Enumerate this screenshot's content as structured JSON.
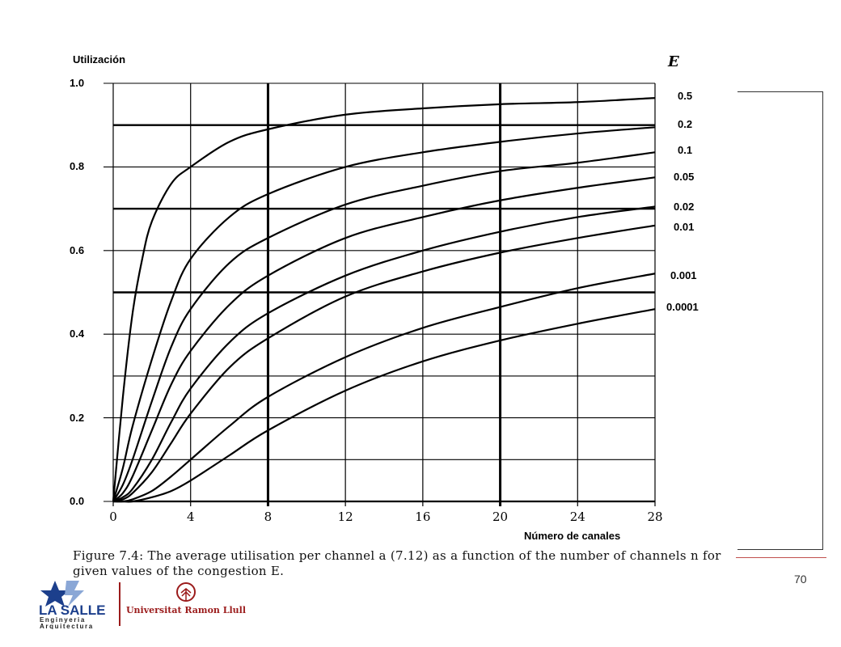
{
  "chart_data": {
    "type": "line",
    "ylabel": "Utilización",
    "xlabel": "Número de canales",
    "legend_title": "E",
    "xlim": [
      0,
      28
    ],
    "ylim": [
      0,
      1.0
    ],
    "x_ticks": [
      "0",
      "4",
      "8",
      "12",
      "16",
      "20",
      "24",
      "28"
    ],
    "y_ticks": [
      "0.0",
      "0.2",
      "0.4",
      "0.6",
      "0.8",
      "1.0"
    ],
    "grid": true,
    "series": [
      {
        "name": "0.5",
        "x": [
          0,
          0.5,
          1,
          1.5,
          2,
          3,
          4,
          6,
          8,
          12,
          16,
          20,
          24,
          28
        ],
        "y": [
          0,
          0.25,
          0.45,
          0.58,
          0.67,
          0.76,
          0.8,
          0.86,
          0.89,
          0.925,
          0.94,
          0.95,
          0.955,
          0.965
        ]
      },
      {
        "name": "0.2",
        "x": [
          0,
          0.5,
          1,
          2,
          3,
          4,
          6,
          8,
          12,
          16,
          20,
          24,
          28
        ],
        "y": [
          0,
          0.08,
          0.18,
          0.34,
          0.48,
          0.58,
          0.68,
          0.735,
          0.8,
          0.835,
          0.86,
          0.88,
          0.895
        ]
      },
      {
        "name": "0.1",
        "x": [
          0,
          0.5,
          1,
          2,
          3,
          4,
          6,
          8,
          12,
          16,
          20,
          24,
          28
        ],
        "y": [
          0,
          0.04,
          0.1,
          0.24,
          0.37,
          0.46,
          0.57,
          0.63,
          0.71,
          0.755,
          0.79,
          0.81,
          0.835
        ]
      },
      {
        "name": "0.05",
        "x": [
          0,
          0.5,
          1,
          2,
          3,
          4,
          6,
          8,
          12,
          16,
          20,
          24,
          28
        ],
        "y": [
          0,
          0.02,
          0.06,
          0.17,
          0.28,
          0.36,
          0.47,
          0.54,
          0.63,
          0.68,
          0.72,
          0.75,
          0.775
        ]
      },
      {
        "name": "0.02",
        "x": [
          0,
          0.5,
          1,
          2,
          3,
          4,
          6,
          8,
          12,
          16,
          20,
          24,
          28
        ],
        "y": [
          0,
          0.01,
          0.03,
          0.1,
          0.19,
          0.27,
          0.38,
          0.45,
          0.54,
          0.6,
          0.645,
          0.68,
          0.705
        ]
      },
      {
        "name": "0.01",
        "x": [
          0,
          0.5,
          1,
          2,
          3,
          4,
          6,
          8,
          12,
          16,
          20,
          24,
          28
        ],
        "y": [
          0,
          0.005,
          0.02,
          0.07,
          0.14,
          0.21,
          0.32,
          0.39,
          0.49,
          0.55,
          0.595,
          0.63,
          0.66
        ]
      },
      {
        "name": "0.001",
        "x": [
          0,
          0.5,
          1,
          2,
          3,
          4,
          6,
          8,
          12,
          16,
          20,
          24,
          28
        ],
        "y": [
          0,
          0.0,
          0.005,
          0.025,
          0.06,
          0.1,
          0.18,
          0.25,
          0.345,
          0.415,
          0.465,
          0.51,
          0.545
        ]
      },
      {
        "name": "0.0001",
        "x": [
          0,
          0.5,
          1,
          2,
          3,
          4,
          6,
          8,
          12,
          16,
          20,
          24,
          28
        ],
        "y": [
          0,
          0.0,
          0.0,
          0.01,
          0.025,
          0.05,
          0.11,
          0.17,
          0.265,
          0.335,
          0.385,
          0.425,
          0.46
        ]
      }
    ],
    "reference_lines_y": [
      0.9,
      0.7,
      0.5
    ],
    "reference_lines_x": [
      8,
      20
    ]
  },
  "caption": "Figure 7.4: The average utilisation per channel a (7.12) as a function of the number of channels n for given values of the congestion E.",
  "page_number": "70",
  "logos": {
    "lasalle_top": "LA SALLE",
    "lasalle_line2": "Enginyeria",
    "lasalle_line3": "Arquitectura",
    "url": "Universitat Ramon Llull"
  },
  "colors": {
    "line": "#000000",
    "grid": "#000000",
    "accent": "#c0504d",
    "logo_blue": "#1c3f8c",
    "logo_red": "#9b1b1b"
  }
}
